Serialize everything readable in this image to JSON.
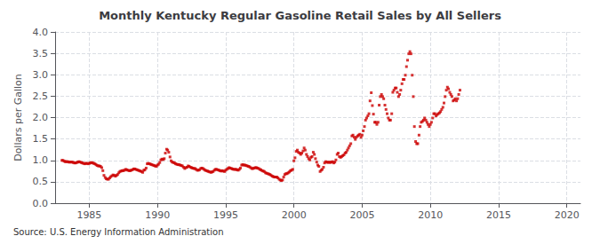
{
  "chart_data": {
    "type": "scatter",
    "title": "Monthly Kentucky Regular Gasoline Retail Sales by All Sellers",
    "ylabel": "Dollars per Gallon",
    "annotation": "Source: U.S. Energy Information Administration",
    "color": "#cc0000",
    "marker": "square",
    "grid": true,
    "xlim": [
      1982.5,
      2021
    ],
    "ylim": [
      0.0,
      4.0
    ],
    "xticks": [
      1985,
      1990,
      1995,
      2000,
      2005,
      2010,
      2015,
      2020
    ],
    "yticks": [
      {
        "value": 0.0,
        "label": "0.0"
      },
      0.5,
      {
        "value": 1.0,
        "label": "1.0"
      },
      1.5,
      {
        "value": 2.0,
        "label": "2.0"
      },
      2.5,
      {
        "value": 3.0,
        "label": "3.0"
      },
      3.5,
      {
        "value": 4.0,
        "label": "4.0"
      }
    ],
    "x": [
      1983.0,
      1983.08,
      1983.17,
      1983.25,
      1983.33,
      1983.42,
      1983.5,
      1983.58,
      1983.67,
      1983.75,
      1983.83,
      1983.92,
      1984.0,
      1984.08,
      1984.17,
      1984.25,
      1984.33,
      1984.42,
      1984.5,
      1984.58,
      1984.67,
      1984.75,
      1984.83,
      1984.92,
      1985.0,
      1985.08,
      1985.17,
      1985.25,
      1985.33,
      1985.42,
      1985.5,
      1985.58,
      1985.67,
      1985.75,
      1985.83,
      1985.92,
      1986.0,
      1986.08,
      1986.17,
      1986.25,
      1986.33,
      1986.42,
      1986.5,
      1986.58,
      1986.67,
      1986.75,
      1986.83,
      1986.92,
      1987.0,
      1987.08,
      1987.17,
      1987.25,
      1987.33,
      1987.42,
      1987.5,
      1987.58,
      1987.67,
      1987.75,
      1987.83,
      1987.92,
      1988.0,
      1988.08,
      1988.17,
      1988.25,
      1988.33,
      1988.42,
      1988.5,
      1988.58,
      1988.67,
      1988.75,
      1988.83,
      1988.92,
      1989.0,
      1989.08,
      1989.17,
      1989.25,
      1989.33,
      1989.42,
      1989.5,
      1989.58,
      1989.67,
      1989.75,
      1989.83,
      1989.92,
      1990.0,
      1990.08,
      1990.17,
      1990.25,
      1990.33,
      1990.42,
      1990.5,
      1990.58,
      1990.67,
      1990.75,
      1990.83,
      1990.92,
      1991.0,
      1991.08,
      1991.17,
      1991.25,
      1991.33,
      1991.42,
      1991.5,
      1991.58,
      1991.67,
      1991.75,
      1991.83,
      1991.92,
      1992.0,
      1992.08,
      1992.17,
      1992.25,
      1992.33,
      1992.42,
      1992.5,
      1992.58,
      1992.67,
      1992.75,
      1992.83,
      1992.92,
      1993.0,
      1993.08,
      1993.17,
      1993.25,
      1993.33,
      1993.42,
      1993.5,
      1993.58,
      1993.67,
      1993.75,
      1993.83,
      1993.92,
      1994.0,
      1994.08,
      1994.17,
      1994.25,
      1994.33,
      1994.42,
      1994.5,
      1994.58,
      1994.67,
      1994.75,
      1994.83,
      1994.92,
      1995.0,
      1995.08,
      1995.17,
      1995.25,
      1995.33,
      1995.42,
      1995.5,
      1995.58,
      1995.67,
      1995.75,
      1995.83,
      1995.92,
      1996.0,
      1996.08,
      1996.17,
      1996.25,
      1996.33,
      1996.42,
      1996.5,
      1996.58,
      1996.67,
      1996.75,
      1996.83,
      1996.92,
      1997.0,
      1997.08,
      1997.17,
      1997.25,
      1997.33,
      1997.42,
      1997.5,
      1997.58,
      1997.67,
      1997.75,
      1997.83,
      1997.92,
      1998.0,
      1998.08,
      1998.17,
      1998.25,
      1998.33,
      1998.42,
      1998.5,
      1998.58,
      1998.67,
      1998.75,
      1998.83,
      1998.92,
      1999.0,
      1999.08,
      1999.17,
      1999.25,
      1999.33,
      1999.42,
      1999.5,
      1999.58,
      1999.67,
      1999.75,
      1999.83,
      1999.92,
      2000.0,
      2000.08,
      2000.17,
      2000.25,
      2000.33,
      2000.42,
      2000.5,
      2000.58,
      2000.67,
      2000.75,
      2000.83,
      2000.92,
      2001.0,
      2001.08,
      2001.17,
      2001.25,
      2001.33,
      2001.42,
      2001.5,
      2001.58,
      2001.67,
      2001.75,
      2001.83,
      2001.92,
      2002.0,
      2002.08,
      2002.17,
      2002.25,
      2002.33,
      2002.42,
      2002.5,
      2002.58,
      2002.67,
      2002.75,
      2002.83,
      2002.92,
      2003.0,
      2003.08,
      2003.17,
      2003.25,
      2003.33,
      2003.42,
      2003.5,
      2003.58,
      2003.67,
      2003.75,
      2003.83,
      2003.92,
      2004.0,
      2004.08,
      2004.17,
      2004.25,
      2004.33,
      2004.42,
      2004.5,
      2004.58,
      2004.67,
      2004.75,
      2004.83,
      2004.92,
      2005.0,
      2005.08,
      2005.17,
      2005.25,
      2005.33,
      2005.42,
      2005.5,
      2005.58,
      2005.67,
      2005.75,
      2005.83,
      2005.92,
      2006.0,
      2006.08,
      2006.17,
      2006.25,
      2006.33,
      2006.42,
      2006.5,
      2006.58,
      2006.67,
      2006.75,
      2006.83,
      2006.92,
      2007.0,
      2007.08,
      2007.17,
      2007.25,
      2007.33,
      2007.42,
      2007.5,
      2007.58,
      2007.67,
      2007.75,
      2007.83,
      2007.92,
      2008.0,
      2008.08,
      2008.17,
      2008.25,
      2008.33,
      2008.42,
      2008.5,
      2008.58,
      2008.67,
      2008.75,
      2008.83,
      2008.92,
      2009.0,
      2009.08,
      2009.17,
      2009.25,
      2009.33,
      2009.42,
      2009.5,
      2009.58,
      2009.67,
      2009.75,
      2009.83,
      2009.92,
      2010.0,
      2010.08,
      2010.17,
      2010.25,
      2010.33,
      2010.42,
      2010.5,
      2010.58,
      2010.67,
      2010.75,
      2010.83,
      2010.92,
      2011.0,
      2011.08,
      2011.17,
      2011.25,
      2011.33,
      2011.42,
      2011.5,
      2011.58,
      2011.67,
      2011.75,
      2011.83,
      2011.92,
      2012.0,
      2012.08,
      2012.17
    ],
    "values": [
      1.0,
      1.0,
      0.98,
      0.97,
      0.97,
      0.97,
      0.96,
      0.96,
      0.96,
      0.96,
      0.95,
      0.94,
      0.94,
      0.95,
      0.96,
      0.97,
      0.96,
      0.95,
      0.94,
      0.93,
      0.92,
      0.93,
      0.93,
      0.92,
      0.93,
      0.94,
      0.95,
      0.94,
      0.93,
      0.92,
      0.9,
      0.88,
      0.87,
      0.87,
      0.86,
      0.83,
      0.76,
      0.65,
      0.6,
      0.57,
      0.56,
      0.56,
      0.59,
      0.62,
      0.64,
      0.66,
      0.65,
      0.63,
      0.65,
      0.67,
      0.71,
      0.74,
      0.75,
      0.76,
      0.76,
      0.77,
      0.79,
      0.78,
      0.77,
      0.76,
      0.76,
      0.77,
      0.78,
      0.8,
      0.8,
      0.79,
      0.78,
      0.77,
      0.76,
      0.75,
      0.74,
      0.72,
      0.77,
      0.78,
      0.82,
      0.92,
      0.93,
      0.92,
      0.91,
      0.9,
      0.89,
      0.88,
      0.87,
      0.86,
      0.89,
      0.91,
      0.95,
      1.01,
      1.03,
      1.02,
      1.04,
      1.17,
      1.26,
      1.24,
      1.19,
      1.08,
      0.99,
      0.96,
      0.95,
      0.94,
      0.92,
      0.91,
      0.9,
      0.9,
      0.89,
      0.88,
      0.87,
      0.84,
      0.81,
      0.83,
      0.84,
      0.87,
      0.86,
      0.84,
      0.83,
      0.82,
      0.81,
      0.81,
      0.79,
      0.77,
      0.77,
      0.78,
      0.81,
      0.82,
      0.81,
      0.79,
      0.77,
      0.76,
      0.75,
      0.74,
      0.73,
      0.72,
      0.73,
      0.74,
      0.77,
      0.79,
      0.79,
      0.78,
      0.77,
      0.76,
      0.75,
      0.76,
      0.75,
      0.74,
      0.77,
      0.79,
      0.81,
      0.83,
      0.82,
      0.81,
      0.8,
      0.79,
      0.79,
      0.79,
      0.78,
      0.77,
      0.79,
      0.82,
      0.89,
      0.9,
      0.89,
      0.89,
      0.88,
      0.87,
      0.86,
      0.85,
      0.83,
      0.81,
      0.81,
      0.82,
      0.83,
      0.83,
      0.82,
      0.81,
      0.79,
      0.78,
      0.76,
      0.75,
      0.74,
      0.71,
      0.7,
      0.69,
      0.68,
      0.67,
      0.65,
      0.63,
      0.62,
      0.61,
      0.61,
      0.61,
      0.59,
      0.56,
      0.54,
      0.53,
      0.54,
      0.61,
      0.67,
      0.69,
      0.69,
      0.71,
      0.73,
      0.76,
      0.77,
      0.79,
      0.99,
      1.06,
      1.21,
      1.24,
      1.19,
      1.17,
      1.14,
      1.17,
      1.22,
      1.29,
      1.24,
      1.14,
      1.09,
      1.04,
      1.01,
      1.07,
      1.09,
      1.19,
      1.14,
      1.04,
      0.96,
      0.89,
      0.86,
      0.74,
      0.77,
      0.79,
      0.84,
      0.94,
      0.97,
      0.96,
      0.95,
      0.96,
      0.95,
      0.96,
      0.97,
      0.94,
      0.96,
      1.01,
      1.14,
      1.17,
      1.09,
      1.07,
      1.09,
      1.11,
      1.13,
      1.17,
      1.19,
      1.24,
      1.29,
      1.34,
      1.39,
      1.57,
      1.59,
      1.54,
      1.49,
      1.54,
      1.57,
      1.59,
      1.61,
      1.54,
      1.59,
      1.69,
      1.79,
      1.94,
      1.99,
      2.04,
      2.09,
      2.39,
      2.58,
      2.28,
      2.08,
      1.89,
      1.89,
      1.84,
      1.89,
      2.29,
      2.49,
      2.54,
      2.49,
      2.44,
      2.29,
      2.19,
      2.09,
      1.99,
      1.94,
      1.94,
      2.09,
      2.59,
      2.64,
      2.69,
      2.69,
      2.59,
      2.49,
      2.54,
      2.64,
      2.79,
      2.89,
      2.89,
      2.99,
      3.19,
      3.34,
      3.49,
      3.54,
      3.49,
      2.99,
      2.49,
      1.79,
      1.44,
      1.39,
      1.39,
      1.59,
      1.79,
      1.89,
      1.91,
      1.94,
      1.99,
      1.94,
      1.89,
      1.84,
      1.79,
      1.84,
      1.89,
      1.99,
      2.09,
      2.09,
      2.04,
      2.07,
      2.09,
      2.11,
      2.14,
      2.19,
      2.24,
      2.34,
      2.49,
      2.64,
      2.71,
      2.67,
      2.59,
      2.54,
      2.49,
      2.39,
      2.41,
      2.44,
      2.39,
      2.44,
      2.54,
      2.64
    ]
  }
}
